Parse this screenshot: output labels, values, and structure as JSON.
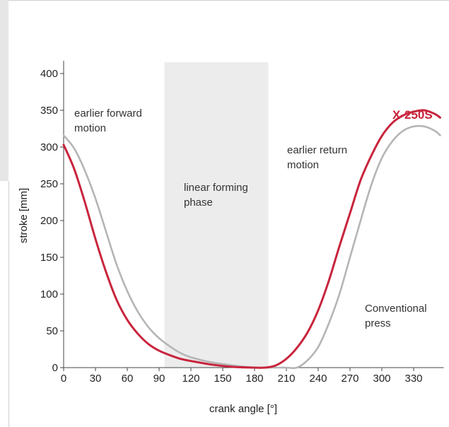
{
  "colors": {
    "x250s": "#c8243c",
    "conventional": "#b5b5b5",
    "phase_band": "#ececec",
    "axis": "#444444",
    "frame_border": "#cfcfcf",
    "side_tab": "#e6e6e6"
  },
  "chart_data": {
    "type": "line",
    "xlabel": "crank angle [°]",
    "ylabel": "stroke [mm]",
    "xlim": [
      0,
      355
    ],
    "ylim": [
      0,
      400
    ],
    "x_ticks": [
      0,
      30,
      60,
      90,
      120,
      150,
      180,
      210,
      240,
      270,
      300,
      330
    ],
    "y_ticks": [
      0,
      50,
      100,
      150,
      200,
      250,
      300,
      350,
      400
    ],
    "shaded_region": {
      "x_from": 95,
      "x_to": 193,
      "label": "linear forming\nphase"
    },
    "annotations": [
      {
        "id": "forward",
        "text": "earlier forward\nmotion"
      },
      {
        "id": "return",
        "text": "earlier return\nmotion"
      }
    ],
    "series": [
      {
        "name": "X-250S",
        "x": [
          0,
          10,
          20,
          30,
          40,
          50,
          60,
          70,
          80,
          90,
          100,
          110,
          120,
          140,
          160,
          180,
          190,
          200,
          210,
          220,
          230,
          240,
          250,
          260,
          270,
          280,
          290,
          300,
          310,
          320,
          330,
          340,
          350,
          355
        ],
        "values": [
          303,
          270,
          225,
          175,
          130,
          92,
          65,
          46,
          32,
          23,
          17,
          12,
          9,
          4,
          1,
          0,
          0,
          3,
          12,
          27,
          48,
          78,
          118,
          165,
          210,
          255,
          288,
          315,
          333,
          343,
          348,
          350,
          345,
          340
        ]
      },
      {
        "name": "Conventional\npress",
        "x": [
          0,
          10,
          20,
          30,
          40,
          50,
          60,
          70,
          80,
          90,
          100,
          110,
          120,
          140,
          160,
          180,
          190,
          200,
          210,
          220,
          230,
          240,
          250,
          260,
          270,
          280,
          290,
          300,
          310,
          320,
          330,
          340,
          350,
          355
        ],
        "values": [
          316,
          298,
          268,
          230,
          185,
          140,
          104,
          76,
          55,
          40,
          29,
          20,
          14,
          7,
          3,
          0,
          0,
          0,
          0,
          0,
          10,
          28,
          60,
          100,
          150,
          200,
          248,
          285,
          308,
          322,
          328,
          328,
          322,
          316
        ]
      }
    ]
  }
}
